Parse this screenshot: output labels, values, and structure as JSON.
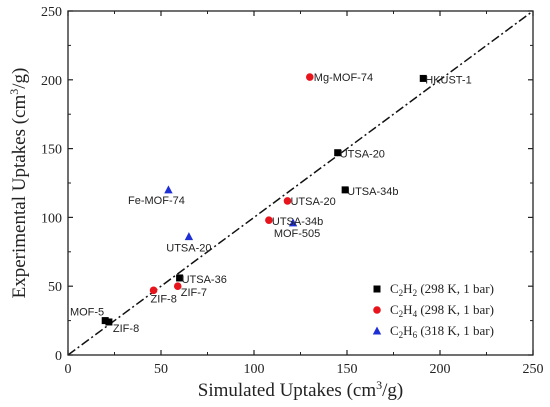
{
  "chart_data": {
    "type": "scatter",
    "xlabel": "Simulated Uptakes (cm",
    "xlabel_sup": "3",
    "xlabel_end": "/g)",
    "ylabel": "Experimental Uptakes (cm",
    "ylabel_sup": "3",
    "ylabel_end": "/g)",
    "xlim": [
      0,
      250
    ],
    "ylim": [
      0,
      250
    ],
    "xticks": [
      0,
      50,
      100,
      150,
      200,
      250
    ],
    "yticks": [
      0,
      50,
      100,
      150,
      200,
      250
    ],
    "grid": false,
    "legend_position": "bottom-right",
    "diagonal": {
      "style": "dash-dot",
      "from": [
        0,
        0
      ],
      "to": [
        250,
        250
      ]
    },
    "series": [
      {
        "name": "C2H2 (298 K, 1 bar)",
        "legend_parts": [
          [
            "C",
            ""
          ],
          [
            "2",
            "sub"
          ],
          [
            "H",
            ""
          ],
          [
            "2",
            "sub"
          ],
          [
            " (298 K, 1 bar)",
            ""
          ]
        ],
        "marker": "square",
        "color": "#000000",
        "points": [
          {
            "x": 191,
            "y": 201,
            "label": "HKUST-1"
          },
          {
            "x": 145,
            "y": 147,
            "label": "UTSA-20"
          },
          {
            "x": 149,
            "y": 120,
            "label": "UTSA-34b"
          },
          {
            "x": 60,
            "y": 56,
            "label": "UTSA-36"
          },
          {
            "x": 20,
            "y": 25,
            "label": "MOF-5"
          },
          {
            "x": 22,
            "y": 24,
            "label": "ZIF-8"
          }
        ]
      },
      {
        "name": "C2H4 (298 K, 1 bar)",
        "legend_parts": [
          [
            "C",
            ""
          ],
          [
            "2",
            "sub"
          ],
          [
            "H",
            ""
          ],
          [
            "4",
            "sub"
          ],
          [
            " (298 K, 1 bar)",
            ""
          ]
        ],
        "marker": "circle",
        "color": "#e8141c",
        "points": [
          {
            "x": 130,
            "y": 202,
            "label": "Mg-MOF-74"
          },
          {
            "x": 118,
            "y": 112,
            "label": "UTSA-20"
          },
          {
            "x": 108,
            "y": 98,
            "label": "UTSA-34b"
          },
          {
            "x": 59,
            "y": 50,
            "label": "ZIF-7"
          },
          {
            "x": 46,
            "y": 47,
            "label": "ZIF-8"
          }
        ]
      },
      {
        "name": "C2H6 (318 K, 1 bar)",
        "legend_parts": [
          [
            "C",
            ""
          ],
          [
            "2",
            "sub"
          ],
          [
            "H",
            ""
          ],
          [
            "6",
            "sub"
          ],
          [
            " (318 K, 1 bar)",
            ""
          ]
        ],
        "marker": "triangle",
        "color": "#1f2fd6",
        "points": [
          {
            "x": 54,
            "y": 120,
            "label": "Fe-MOF-74"
          },
          {
            "x": 65,
            "y": 86,
            "label": "UTSA-20"
          },
          {
            "x": 121,
            "y": 96,
            "label": "MOF-505"
          }
        ]
      }
    ]
  }
}
